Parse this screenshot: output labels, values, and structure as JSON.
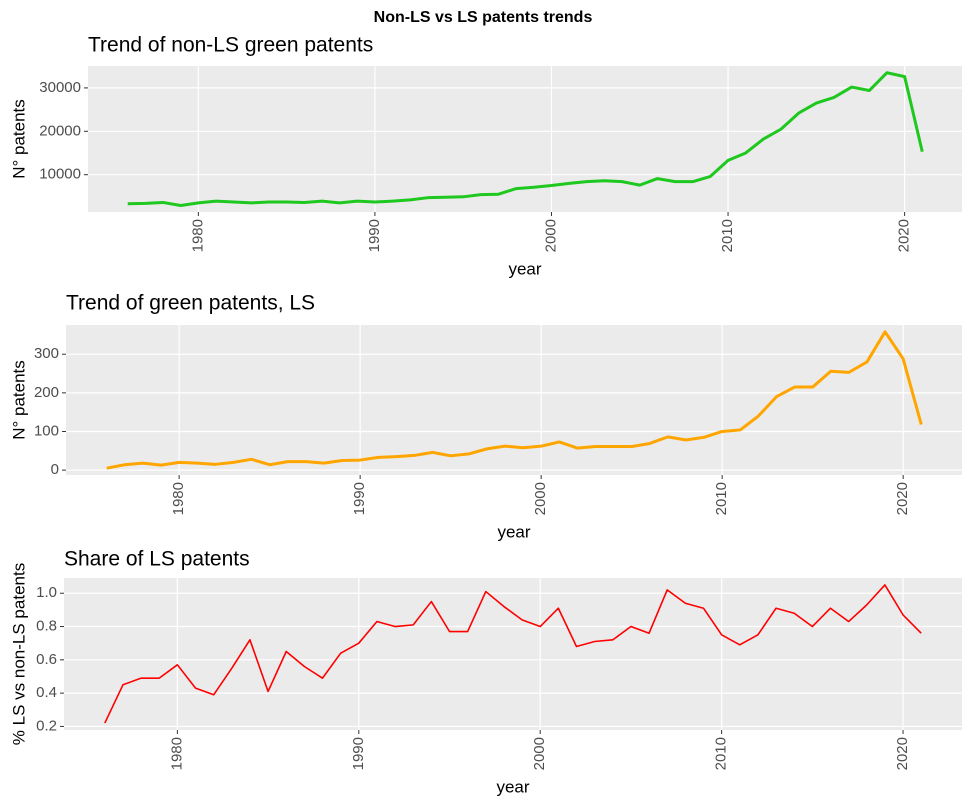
{
  "title": "Non-LS vs LS patents trends",
  "chart_data": [
    {
      "type": "line",
      "title": "Trend of non-LS green patents",
      "x_label": "year",
      "y_label": "N° patents",
      "color": "#1ec81e",
      "line_width": 3,
      "x": [
        1976,
        1977,
        1978,
        1979,
        1980,
        1981,
        1982,
        1983,
        1984,
        1985,
        1986,
        1987,
        1988,
        1989,
        1990,
        1991,
        1992,
        1993,
        1994,
        1995,
        1996,
        1997,
        1998,
        1999,
        2000,
        2001,
        2002,
        2003,
        2004,
        2005,
        2006,
        2007,
        2008,
        2009,
        2010,
        2011,
        2012,
        2013,
        2014,
        2015,
        2016,
        2017,
        2018,
        2019,
        2020,
        2021
      ],
      "values": [
        3300,
        3400,
        3600,
        2900,
        3500,
        3900,
        3700,
        3500,
        3700,
        3700,
        3600,
        3900,
        3500,
        3900,
        3700,
        3900,
        4200,
        4700,
        4800,
        4900,
        5400,
        5500,
        6800,
        7100,
        7500,
        8000,
        8400,
        8600,
        8400,
        7600,
        9100,
        8400,
        8400,
        9600,
        13300,
        15000,
        18200,
        20500,
        24200,
        26500,
        27800,
        30200,
        29400,
        33500,
        32600,
        15300
      ],
      "xlim": [
        1973.75,
        2023.25
      ],
      "xticks": [
        1980,
        1990,
        2000,
        2010,
        2020
      ],
      "ylim": [
        1400,
        35050
      ],
      "yticks": [
        10000,
        20000,
        30000
      ],
      "grid": true
    },
    {
      "type": "line",
      "title": "Trend of green patents, LS",
      "x_label": "year",
      "y_label": "N° patents",
      "color": "#ffa500",
      "line_width": 3,
      "x": [
        1976,
        1977,
        1978,
        1979,
        1980,
        1981,
        1982,
        1983,
        1984,
        1985,
        1986,
        1987,
        1988,
        1989,
        1990,
        1991,
        1992,
        1993,
        1994,
        1995,
        1996,
        1997,
        1998,
        1999,
        2000,
        2001,
        2002,
        2003,
        2004,
        2005,
        2006,
        2007,
        2008,
        2009,
        2010,
        2011,
        2012,
        2013,
        2014,
        2015,
        2016,
        2017,
        2018,
        2019,
        2020,
        2021
      ],
      "values": [
        5,
        14,
        18,
        13,
        20,
        18,
        15,
        20,
        28,
        14,
        22,
        22,
        18,
        25,
        26,
        33,
        35,
        38,
        46,
        37,
        42,
        55,
        62,
        58,
        62,
        73,
        57,
        61,
        61,
        61,
        69,
        86,
        78,
        85,
        100,
        104,
        140,
        190,
        215,
        215,
        256,
        253,
        280,
        358,
        288,
        118
      ],
      "xlim": [
        1973.75,
        2023.25
      ],
      "xticks": [
        1980,
        1990,
        2000,
        2010,
        2020
      ],
      "ylim": [
        -12.65,
        375.65
      ],
      "yticks": [
        0,
        100,
        200,
        300
      ],
      "grid": true
    },
    {
      "type": "line",
      "title": "Share of LS patents",
      "x_label": "year",
      "y_label": "% LS vs non-LS patents",
      "color": "#ff0000",
      "line_width": 1.6,
      "x": [
        1976,
        1977,
        1978,
        1979,
        1980,
        1981,
        1982,
        1983,
        1984,
        1985,
        1986,
        1987,
        1988,
        1989,
        1990,
        1991,
        1992,
        1993,
        1994,
        1995,
        1996,
        1997,
        1998,
        1999,
        2000,
        2001,
        2002,
        2003,
        2004,
        2005,
        2006,
        2007,
        2008,
        2009,
        2010,
        2011,
        2012,
        2013,
        2014,
        2015,
        2016,
        2017,
        2018,
        2019,
        2020,
        2021
      ],
      "values": [
        0.22,
        0.45,
        0.49,
        0.49,
        0.57,
        0.43,
        0.39,
        0.55,
        0.72,
        0.41,
        0.65,
        0.56,
        0.49,
        0.64,
        0.7,
        0.83,
        0.8,
        0.81,
        0.95,
        0.77,
        0.77,
        1.01,
        0.92,
        0.84,
        0.8,
        0.91,
        0.68,
        0.71,
        0.72,
        0.8,
        0.76,
        1.02,
        0.94,
        0.91,
        0.75,
        0.69,
        0.75,
        0.91,
        0.88,
        0.8,
        0.91,
        0.83,
        0.93,
        1.05,
        0.87,
        0.76
      ],
      "xlim": [
        1973.75,
        2023.25
      ],
      "xticks": [
        1980,
        1990,
        2000,
        2010,
        2020
      ],
      "ylim": [
        0.1785,
        1.0915
      ],
      "yticks": [
        0.2,
        0.4,
        0.6,
        0.8,
        {
          "value": 1,
          "label": "1.0"
        }
      ],
      "grid": true
    }
  ]
}
